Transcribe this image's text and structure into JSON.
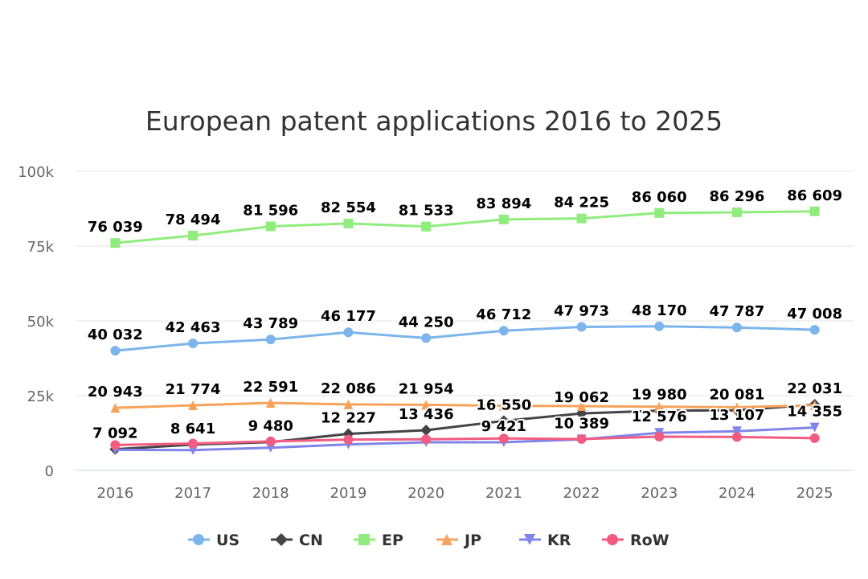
{
  "chart_data": {
    "type": "line",
    "title": "European patent applications 2016 to 2025",
    "xlabel": "",
    "ylabel": "",
    "categories": [
      "2016",
      "2017",
      "2018",
      "2019",
      "2020",
      "2021",
      "2022",
      "2023",
      "2024",
      "2025"
    ],
    "ylim": [
      0,
      100000
    ],
    "yticks": [
      0,
      25000,
      50000,
      75000,
      100000
    ],
    "ytick_labels": [
      "0",
      "25k",
      "50k",
      "75k",
      "100k"
    ],
    "grid": true,
    "legend_position": "bottom-center",
    "series": [
      {
        "name": "US",
        "color": "#7cb5ec",
        "marker": "circle",
        "values": [
          40032,
          42463,
          43789,
          46177,
          44250,
          46712,
          47973,
          48170,
          47787,
          47008
        ],
        "labels": [
          "40 032",
          "42 463",
          "43 789",
          "46 177",
          "44 250",
          "46 712",
          "47 973",
          "48 170",
          "47 787",
          "47 008"
        ]
      },
      {
        "name": "CN",
        "color": "#434348",
        "marker": "diamond",
        "values": [
          7092,
          8641,
          9480,
          12227,
          13436,
          16550,
          19062,
          19980,
          20081,
          22031
        ],
        "labels": [
          "7 092",
          "8 641",
          "9 480",
          "12 227",
          "13 436",
          "16 550",
          "19 062",
          "19 980",
          "20 081",
          "22 031"
        ]
      },
      {
        "name": "EP",
        "color": "#90ed7d",
        "marker": "square",
        "values": [
          76039,
          78494,
          81596,
          82554,
          81533,
          83894,
          84225,
          86060,
          86296,
          86609
        ],
        "labels": [
          "76 039",
          "78 494",
          "81 596",
          "82 554",
          "81 533",
          "83 894",
          "84 225",
          "86 060",
          "86 296",
          "86 609"
        ]
      },
      {
        "name": "JP",
        "color": "#f7a35c",
        "marker": "triangle",
        "values": [
          20943,
          21774,
          22591,
          22086,
          21954,
          21600,
          21500,
          21300,
          21100,
          21800
        ],
        "labels": [
          "20 943",
          "21 774",
          "22 591",
          "22 086",
          "21 954",
          "",
          "",
          "",
          "",
          ""
        ]
      },
      {
        "name": "KR",
        "color": "#8085e9",
        "marker": "triangle-down",
        "values": [
          6900,
          6800,
          7600,
          8700,
          9400,
          9421,
          10389,
          12576,
          13107,
          14355
        ],
        "labels": [
          "",
          "",
          "",
          "",
          "",
          "9 421",
          "10 389",
          "12 576",
          "13 107",
          "14 355"
        ]
      },
      {
        "name": "RoW",
        "color": "#f15c80",
        "marker": "circle",
        "values": [
          8500,
          9000,
          9700,
          10300,
          10400,
          10700,
          10500,
          11300,
          11200,
          10800
        ],
        "labels": [
          "",
          "",
          "",
          "",
          "",
          "",
          "",
          "",
          "",
          ""
        ]
      }
    ]
  }
}
